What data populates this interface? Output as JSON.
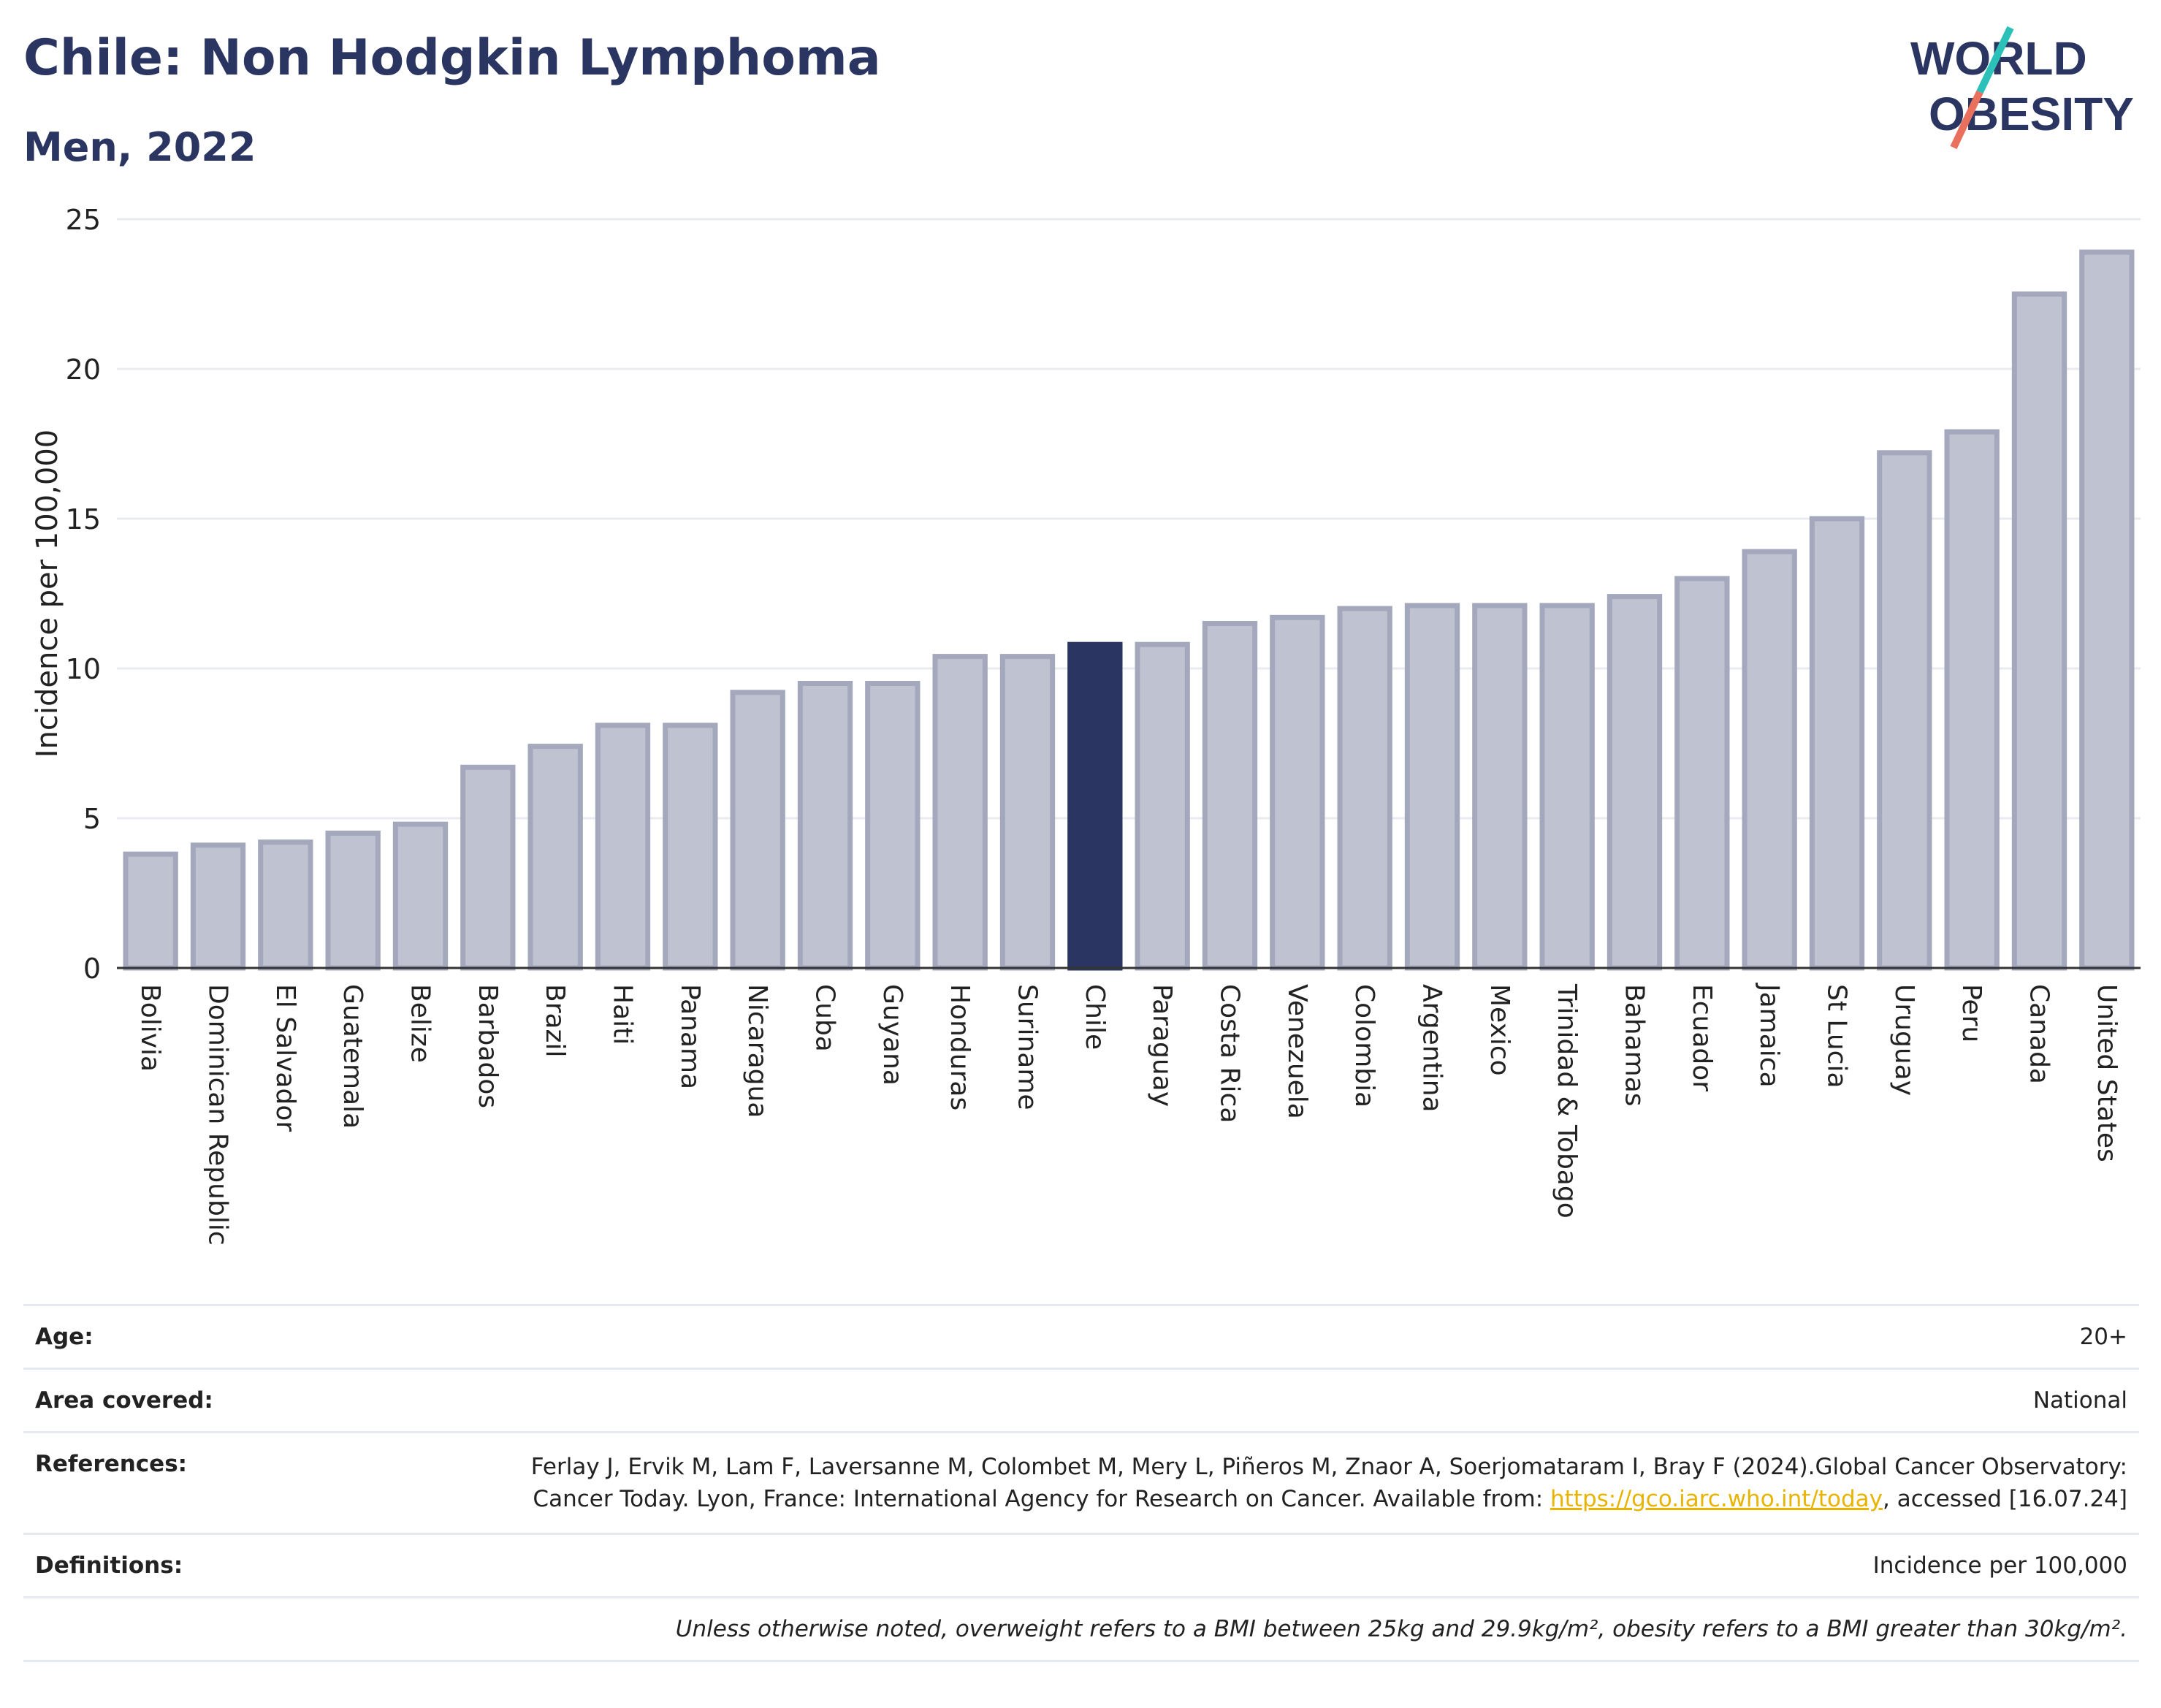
{
  "title": "Chile: Non Hodgkin Lymphoma",
  "subtitle": "Men, 2022",
  "logo": {
    "line1": "WORLD",
    "line2": "OBESITY",
    "colors": [
      "#2a3561",
      "#2cc1b8",
      "#e8705d"
    ]
  },
  "chart_data": {
    "type": "bar",
    "ylabel": "Incidence per 100,000",
    "ylim": [
      0,
      25
    ],
    "yticks": [
      0,
      5,
      10,
      15,
      20,
      25
    ],
    "highlight": "Chile",
    "colors": {
      "bar": "#bfc2d0",
      "bar_border": "#a3a8bc",
      "highlight": "#2a3561",
      "grid": "#e9ebf0"
    },
    "categories": [
      "Bolivia",
      "Dominican Republic",
      "El Salvador",
      "Guatemala",
      "Belize",
      "Barbados",
      "Brazil",
      "Haiti",
      "Panama",
      "Nicaragua",
      "Cuba",
      "Guyana",
      "Honduras",
      "Suriname",
      "Chile",
      "Paraguay",
      "Costa Rica",
      "Venezuela",
      "Colombia",
      "Argentina",
      "Mexico",
      "Trinidad & Tobago",
      "Bahamas",
      "Ecuador",
      "Jamaica",
      "St Lucia",
      "Uruguay",
      "Peru",
      "Canada",
      "United States"
    ],
    "values": [
      3.8,
      4.1,
      4.2,
      4.5,
      4.8,
      6.7,
      7.4,
      8.1,
      8.1,
      9.2,
      9.5,
      9.5,
      10.4,
      10.4,
      10.8,
      10.8,
      11.5,
      11.7,
      12.0,
      12.1,
      12.1,
      12.1,
      12.4,
      13.0,
      13.9,
      15.0,
      17.2,
      17.9,
      22.5,
      23.9
    ]
  },
  "meta": {
    "age_label": "Age:",
    "age_value": "20+",
    "area_label": "Area covered:",
    "area_value": "National",
    "references_label": "References:",
    "references_text": "Ferlay J, Ervik M, Lam F, Laversanne M, Colombet M, Mery L, Piñeros M, Znaor A, Soerjomataram I, Bray F (2024).Global Cancer Observatory: Cancer Today. Lyon, France: International Agency for Research on Cancer. Available from: ",
    "references_link": "https://gco.iarc.who.int/today",
    "references_tail": ", accessed [16.07.24]",
    "definitions_label": "Definitions:",
    "definitions_value": "Incidence per 100,000",
    "note": "Unless otherwise noted, overweight refers to a BMI between 25kg and 29.9kg/m², obesity refers to a BMI greater than 30kg/m²."
  }
}
